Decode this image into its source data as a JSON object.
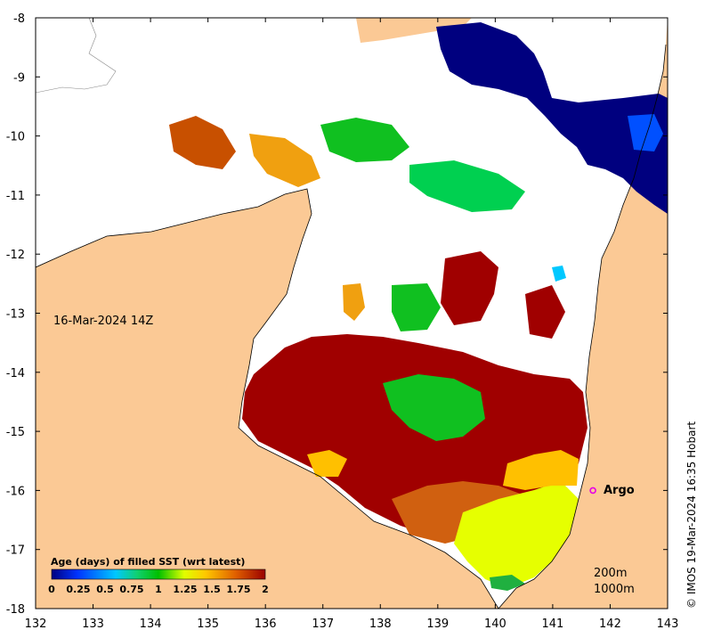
{
  "map": {
    "date_label": "16-Mar-2024 14Z",
    "credit": "© IMOS 19-Mar-2024 16:35 Hobart",
    "argo_label": "Argo",
    "contour_labels": [
      "200m",
      "1000m"
    ],
    "x_ticks": [
      "132",
      "133",
      "134",
      "135",
      "136",
      "137",
      "138",
      "139",
      "140",
      "141",
      "142",
      "143"
    ],
    "y_ticks": [
      "-8",
      "-9",
      "-10",
      "-11",
      "-12",
      "-13",
      "-14",
      "-15",
      "-16",
      "-17",
      "-18"
    ],
    "lon_range": [
      132,
      143
    ],
    "lat_range": [
      -18,
      -8
    ],
    "argo_position": {
      "lon": 141.7,
      "lat": -16.0
    },
    "colors": {
      "land": "#fbc995",
      "ocean_nodata": "#ffffff",
      "argo_marker": "#e600e6"
    }
  },
  "colorbar": {
    "title": "Age (days) of filled SST (wrt latest)",
    "ticks": [
      "0",
      "0.25",
      "0.5",
      "0.75",
      "1",
      "1.25",
      "1.5",
      "1.75",
      "2"
    ],
    "stops": [
      "#00007f",
      "#0033ff",
      "#00c8ff",
      "#10d070",
      "#00c000",
      "#e0ff00",
      "#ffc800",
      "#e06000",
      "#9a0000"
    ]
  }
}
